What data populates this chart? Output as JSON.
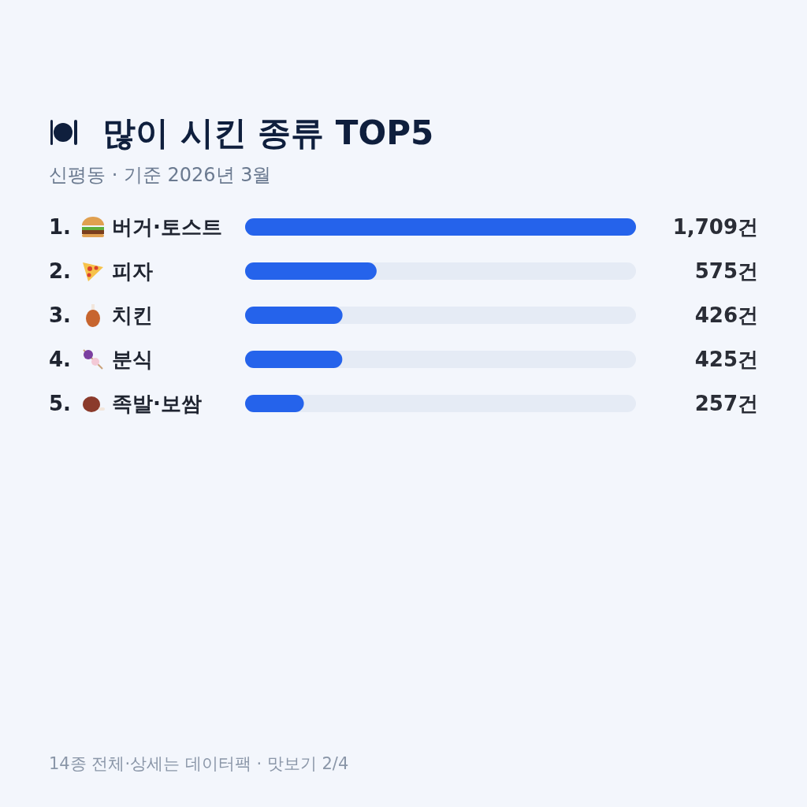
{
  "chart_data": {
    "type": "bar",
    "orientation": "horizontal",
    "title": "많이 시킨 종류 TOP5",
    "subtitle": "신평동 · 기준 2026년 3월",
    "categories": [
      "1. 버거·토스트",
      "2. 피자",
      "3. 치킨",
      "4. 분식",
      "5. 족발·보쌈"
    ],
    "values": [
      1709,
      575,
      426,
      425,
      257
    ],
    "value_labels": [
      "1,709건",
      "575건",
      "426건",
      "425건",
      "257건"
    ],
    "color": "#2563eb",
    "xlim": [
      0,
      1709
    ],
    "annotations": [
      "14종 전체·상세는 데이터팩 · 맛보기 2/4"
    ]
  }
}
